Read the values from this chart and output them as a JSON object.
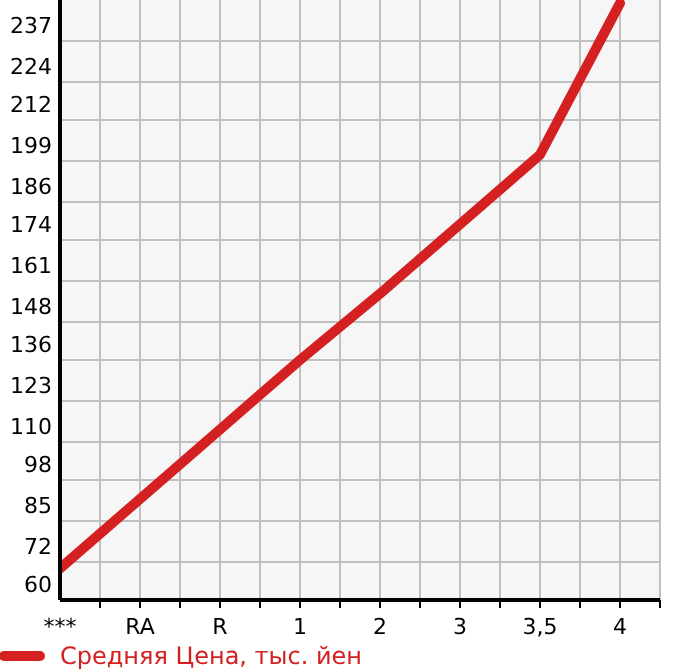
{
  "chart_data": {
    "type": "line",
    "categories": [
      "***",
      "RA",
      "R",
      "1",
      "2",
      "3",
      "3,5",
      "4"
    ],
    "series": [
      {
        "name": "Средняя Цена, тыс. йен",
        "color": "#d42020",
        "values": [
          70,
          92,
          114,
          136,
          157,
          179,
          201,
          249
        ]
      }
    ],
    "ylim": [
      60,
      250
    ],
    "yticks": [
      60,
      72,
      85,
      98,
      110,
      123,
      136,
      148,
      161,
      174,
      186,
      199,
      212,
      224,
      237
    ],
    "grid": true,
    "legend": "bottom",
    "marker": "none",
    "line_style": "solid"
  }
}
